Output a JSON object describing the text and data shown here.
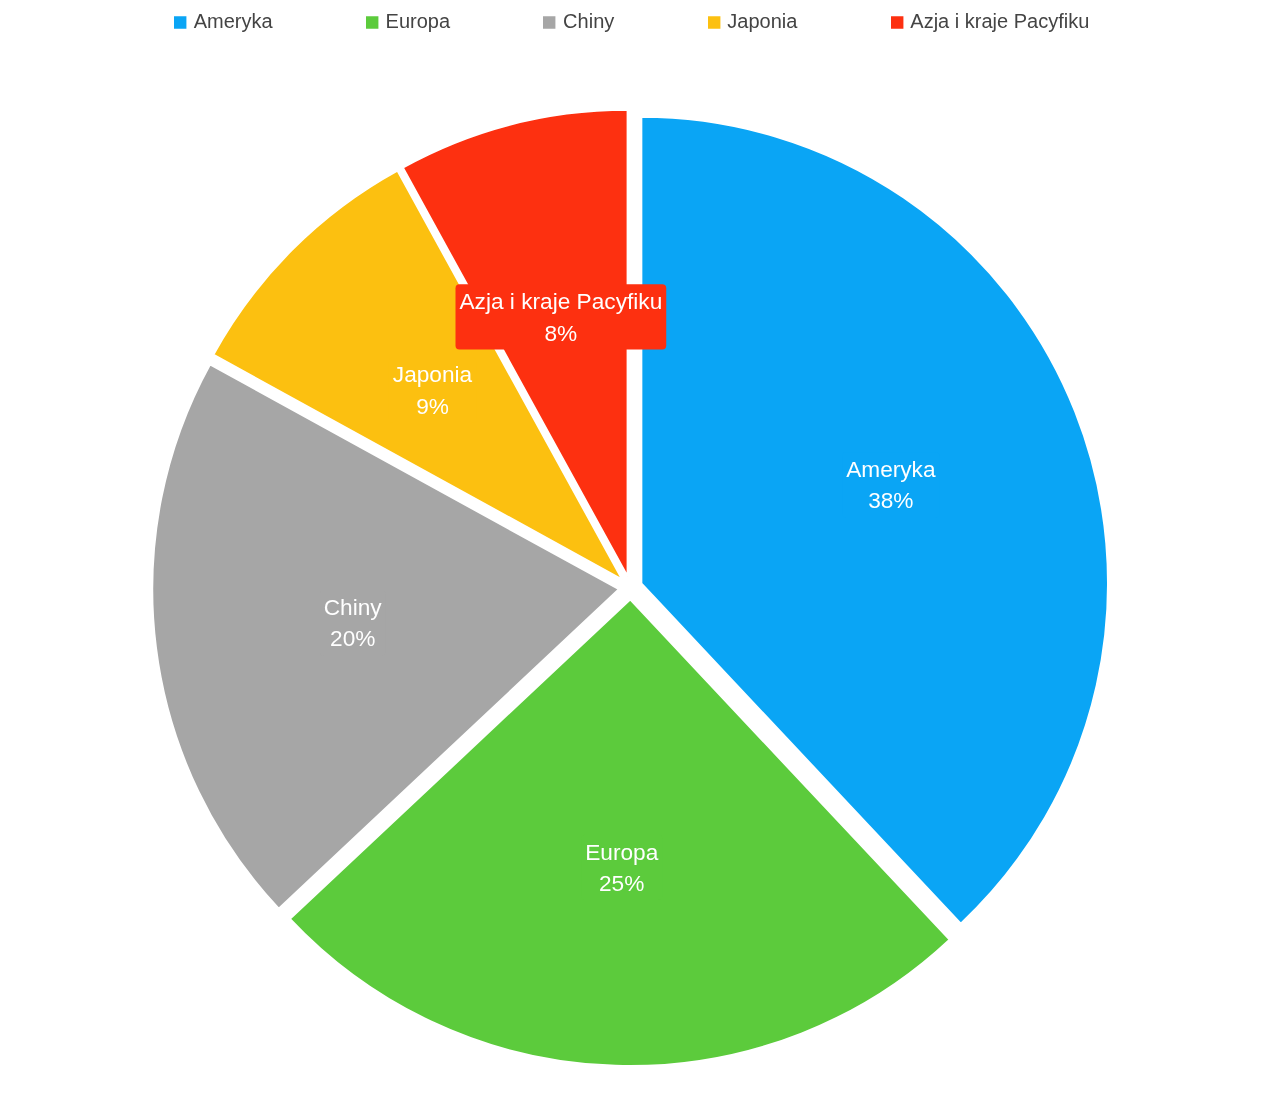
{
  "chart_data": {
    "type": "pie",
    "categories": [
      "Ameryka",
      "Europa",
      "Chiny",
      "Japonia",
      "Azja i kraje Pacyfiku"
    ],
    "values": [
      38,
      25,
      20,
      9,
      8
    ],
    "colors": [
      "#0aa5f5",
      "#5ccb3c",
      "#a6a6a6",
      "#fcc010",
      "#fd3010"
    ],
    "value_labels": [
      "38%",
      "25%",
      "20%",
      "9%",
      "8%"
    ],
    "legend": "top"
  }
}
